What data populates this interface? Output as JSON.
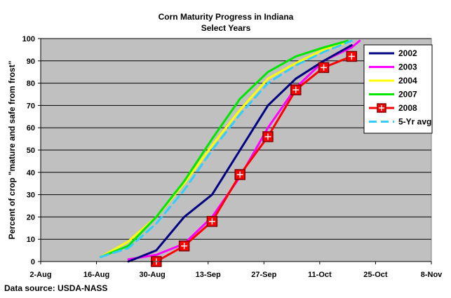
{
  "chart_data": {
    "type": "line",
    "title": "Corn Maturity Progress in Indiana",
    "subtitle": "Select Years",
    "ylabel": "Percent of crop \"mature and safe from frost\"",
    "xlabel": "",
    "source": "Data source: USDA-NASS",
    "x_ticks": [
      "2-Aug",
      "16-Aug",
      "30-Aug",
      "13-Sep",
      "27-Sep",
      "11-Oct",
      "25-Oct",
      "8-Nov"
    ],
    "x_tick_dates": [
      "2008-08-02",
      "2008-08-16",
      "2008-08-30",
      "2008-09-13",
      "2008-09-27",
      "2008-10-11",
      "2008-10-25",
      "2008-11-08"
    ],
    "xlim": [
      "2008-08-02",
      "2008-11-08"
    ],
    "y_ticks": [
      0,
      10,
      20,
      30,
      40,
      50,
      60,
      70,
      80,
      90,
      100
    ],
    "ylim": [
      0,
      100
    ],
    "grid": "horizontal",
    "legend_position": "right",
    "colors": {
      "plot_bg": "#c0c0c0",
      "grid": "#000000"
    },
    "series": [
      {
        "name": "2002",
        "color": "#000080",
        "dash": false,
        "markers": false,
        "points": [
          {
            "x": "2008-08-24",
            "y": 0
          },
          {
            "x": "2008-08-31",
            "y": 5
          },
          {
            "x": "2008-09-07",
            "y": 20
          },
          {
            "x": "2008-09-14",
            "y": 30
          },
          {
            "x": "2008-09-21",
            "y": 50
          },
          {
            "x": "2008-09-28",
            "y": 70
          },
          {
            "x": "2008-10-05",
            "y": 82
          },
          {
            "x": "2008-10-12",
            "y": 90
          },
          {
            "x": "2008-10-19",
            "y": 97
          }
        ]
      },
      {
        "name": "2003",
        "color": "#ff00ff",
        "dash": false,
        "markers": false,
        "points": [
          {
            "x": "2008-08-24",
            "y": 1
          },
          {
            "x": "2008-08-31",
            "y": 3
          },
          {
            "x": "2008-09-07",
            "y": 8
          },
          {
            "x": "2008-09-14",
            "y": 20
          },
          {
            "x": "2008-09-21",
            "y": 38
          },
          {
            "x": "2008-09-28",
            "y": 60
          },
          {
            "x": "2008-10-05",
            "y": 78
          },
          {
            "x": "2008-10-12",
            "y": 90
          },
          {
            "x": "2008-10-19",
            "y": 96
          },
          {
            "x": "2008-10-21",
            "y": 99
          }
        ]
      },
      {
        "name": "2004",
        "color": "#ffff00",
        "dash": false,
        "markers": false,
        "points": [
          {
            "x": "2008-08-17",
            "y": 2
          },
          {
            "x": "2008-08-24",
            "y": 9
          },
          {
            "x": "2008-08-31",
            "y": 20
          },
          {
            "x": "2008-09-07",
            "y": 35
          },
          {
            "x": "2008-09-14",
            "y": 52
          },
          {
            "x": "2008-09-21",
            "y": 68
          },
          {
            "x": "2008-09-28",
            "y": 82
          },
          {
            "x": "2008-10-05",
            "y": 89
          },
          {
            "x": "2008-10-12",
            "y": 95
          },
          {
            "x": "2008-10-19",
            "y": 99
          }
        ]
      },
      {
        "name": "2007",
        "color": "#00e600",
        "dash": false,
        "markers": false,
        "points": [
          {
            "x": "2008-08-17",
            "y": 2
          },
          {
            "x": "2008-08-24",
            "y": 7
          },
          {
            "x": "2008-08-31",
            "y": 20
          },
          {
            "x": "2008-09-07",
            "y": 36
          },
          {
            "x": "2008-09-14",
            "y": 55
          },
          {
            "x": "2008-09-21",
            "y": 73
          },
          {
            "x": "2008-09-28",
            "y": 85
          },
          {
            "x": "2008-10-05",
            "y": 92
          },
          {
            "x": "2008-10-12",
            "y": 96
          },
          {
            "x": "2008-10-18",
            "y": 99
          }
        ]
      },
      {
        "name": "2008",
        "color": "#ff0000",
        "dash": false,
        "markers": true,
        "points": [
          {
            "x": "2008-08-31",
            "y": 0
          },
          {
            "x": "2008-09-07",
            "y": 7
          },
          {
            "x": "2008-09-14",
            "y": 18
          },
          {
            "x": "2008-09-21",
            "y": 39
          },
          {
            "x": "2008-09-28",
            "y": 56
          },
          {
            "x": "2008-10-05",
            "y": 77
          },
          {
            "x": "2008-10-12",
            "y": 87
          },
          {
            "x": "2008-10-19",
            "y": 92
          }
        ]
      },
      {
        "name": "5-Yr avg",
        "color": "#33ccff",
        "dash": true,
        "markers": false,
        "points": [
          {
            "x": "2008-08-17",
            "y": 2
          },
          {
            "x": "2008-08-24",
            "y": 6
          },
          {
            "x": "2008-08-31",
            "y": 17
          },
          {
            "x": "2008-09-07",
            "y": 32
          },
          {
            "x": "2008-09-14",
            "y": 50
          },
          {
            "x": "2008-09-21",
            "y": 66
          },
          {
            "x": "2008-09-28",
            "y": 80
          },
          {
            "x": "2008-10-05",
            "y": 88
          },
          {
            "x": "2008-10-12",
            "y": 94
          },
          {
            "x": "2008-10-19",
            "y": 99
          }
        ]
      }
    ]
  }
}
